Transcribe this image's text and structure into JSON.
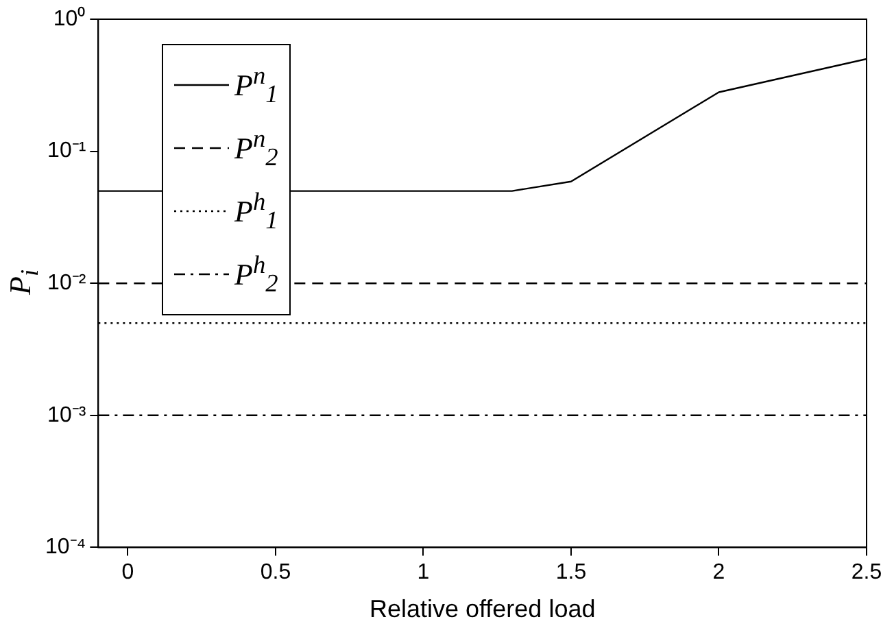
{
  "chart_data": {
    "type": "line",
    "xlabel": "Relative offered load",
    "ylabel": "P$_{i}$",
    "log": "y",
    "grid": false,
    "legend": "top left",
    "marker": "none",
    "xlim": [
      -0.1,
      2.5
    ],
    "xticks": [
      0,
      0.5,
      1,
      1.5,
      2,
      2.5
    ],
    "ylim": [
      0.0001,
      1
    ],
    "yticks": [
      {
        "value": 0.0001,
        "label": "10⁻⁴"
      },
      {
        "value": 0.001,
        "label": "10⁻³"
      },
      {
        "value": 0.01,
        "label": "10⁻²"
      },
      {
        "value": 0.1,
        "label": "10⁻¹"
      },
      {
        "value": 1,
        "label": "10⁰"
      }
    ],
    "series": [
      {
        "name": "P$^{n}$$_{1}$",
        "color": "#000000",
        "line_style": "solid",
        "x": [
          -0.1,
          1.3,
          1.5,
          2,
          2.5
        ],
        "values": [
          0.05,
          0.05,
          0.059,
          0.28,
          0.5
        ]
      },
      {
        "name": "P$^{n}$$_{2}$",
        "color": "#000000",
        "line_style": "dashed",
        "x": [
          -0.1,
          2.5
        ],
        "values": [
          0.01,
          0.01
        ]
      },
      {
        "name": "P$^{h}$$_{1}$",
        "color": "#000000",
        "line_style": "dotted",
        "x": [
          -0.1,
          2.5
        ],
        "values": [
          0.005,
          0.005
        ]
      },
      {
        "name": "P$^{h}$$_{2}$",
        "color": "#000000",
        "line_style": "dashdot",
        "x": [
          -0.1,
          2.5
        ],
        "values": [
          0.001,
          0.001
        ]
      }
    ]
  }
}
